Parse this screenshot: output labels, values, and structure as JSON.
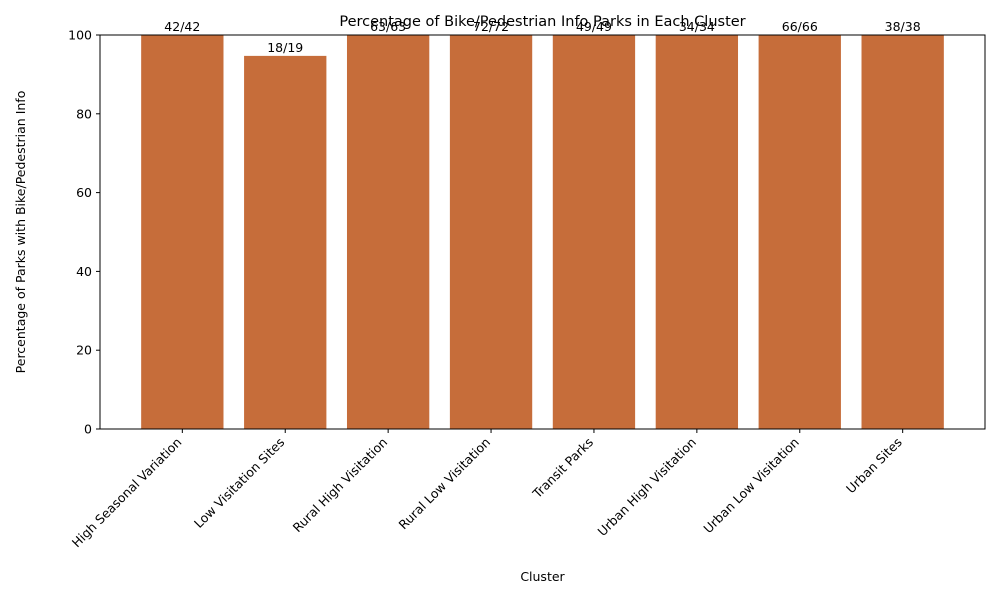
{
  "chart_data": {
    "type": "bar",
    "title": "Percentage of Bike/Pedestrian Info Parks in Each Cluster",
    "xlabel": "Cluster",
    "ylabel": "Percentage of Parks with Bike/Pedestrian Info",
    "ylim": [
      0,
      100
    ],
    "yticks": [
      0,
      20,
      40,
      60,
      80,
      100
    ],
    "grid": false,
    "bar_color": "#c66d3a",
    "categories": [
      "High Seasonal Variation",
      "Low Visitation Sites",
      "Rural High Visitation",
      "Rural Low Visitation",
      "Transit Parks",
      "Urban High Visitation",
      "Urban Low Visitation",
      "Urban Sites"
    ],
    "values": [
      100,
      94.7,
      100,
      100,
      100,
      100,
      100,
      100
    ],
    "data_labels": [
      "42/42",
      "18/19",
      "63/63",
      "72/72",
      "49/49",
      "34/34",
      "66/66",
      "38/38"
    ]
  }
}
